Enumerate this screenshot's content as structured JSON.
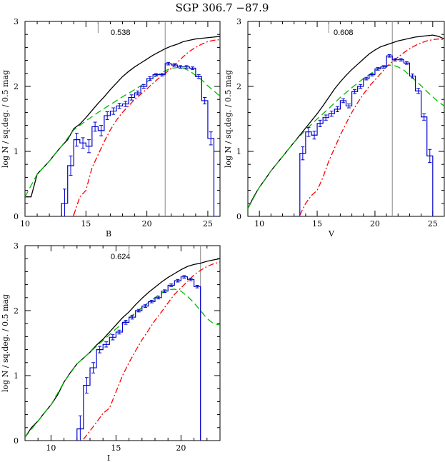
{
  "figure_title": "SGP 306.7  −87.9",
  "colors": {
    "total": "#000000",
    "green": "#00bb00",
    "red": "#ff0000",
    "observed": "#0000cc",
    "marker": "#888888"
  },
  "chart_data": [
    {
      "type": "line",
      "xlabel": "B",
      "ylabel": "log N / sq.deg. / 0.5 mag",
      "annotation": "0.538",
      "xlim": [
        10,
        26
      ],
      "ylim": [
        0,
        3
      ],
      "xticks": [
        10,
        15,
        20,
        25
      ],
      "yticks": [
        0,
        1,
        2,
        3
      ],
      "vline": 21.5,
      "short_tick": 16,
      "series": [
        {
          "style": "total",
          "x": [
            10,
            10.5,
            11,
            11.5,
            12,
            12.5,
            13,
            13.5,
            14,
            14.5,
            15,
            15.5,
            16,
            16.5,
            17,
            17.5,
            18,
            18.5,
            19,
            19.5,
            20,
            20.5,
            21,
            21.5,
            22,
            22.5,
            23,
            23.5,
            24,
            24.5,
            25,
            25.5,
            26
          ],
          "y": [
            0.3,
            0.3,
            0.65,
            0.75,
            0.85,
            0.97,
            1.08,
            1.18,
            1.35,
            1.42,
            1.52,
            1.63,
            1.74,
            1.84,
            1.95,
            2.05,
            2.15,
            2.23,
            2.3,
            2.36,
            2.42,
            2.48,
            2.53,
            2.58,
            2.62,
            2.65,
            2.69,
            2.71,
            2.73,
            2.74,
            2.75,
            2.76,
            2.77
          ]
        },
        {
          "style": "green",
          "x": [
            10,
            11,
            12,
            13,
            14,
            15,
            16,
            17,
            18,
            19,
            20,
            21,
            21.5,
            22,
            22.5,
            23,
            23.5,
            24,
            24.5,
            25,
            25.5,
            26
          ],
          "y": [
            0.3,
            0.65,
            0.85,
            1.08,
            1.33,
            1.47,
            1.6,
            1.72,
            1.84,
            1.95,
            2.07,
            2.19,
            2.24,
            2.28,
            2.29,
            2.28,
            2.24,
            2.17,
            2.1,
            2.01,
            1.93,
            1.85
          ]
        },
        {
          "style": "red",
          "x": [
            14,
            14.5,
            15,
            15.5,
            16,
            16.5,
            17,
            17.5,
            18,
            18.5,
            19,
            19.5,
            20,
            20.5,
            21,
            21.5,
            22,
            22.5,
            23,
            23.5,
            24,
            24.5,
            25,
            25.5,
            26
          ],
          "y": [
            0.02,
            0.3,
            0.4,
            0.75,
            0.95,
            1.15,
            1.33,
            1.48,
            1.6,
            1.7,
            1.8,
            1.88,
            1.96,
            2.05,
            2.13,
            2.2,
            2.28,
            2.37,
            2.46,
            2.54,
            2.6,
            2.65,
            2.69,
            2.71,
            2.72
          ]
        },
        {
          "style": "observed",
          "x": [
            13.25,
            13.75,
            14.25,
            14.75,
            15.25,
            15.75,
            16.25,
            16.75,
            17.25,
            17.75,
            18.25,
            18.75,
            19.25,
            19.75,
            20.25,
            20.75,
            21.25,
            21.75,
            22.25,
            22.75,
            23.25,
            23.75,
            24.25,
            24.75,
            25.25,
            25.75
          ],
          "y": [
            0.2,
            0.78,
            1.18,
            1.13,
            1.08,
            1.38,
            1.32,
            1.55,
            1.62,
            1.7,
            1.73,
            1.83,
            1.9,
            2.0,
            2.12,
            2.18,
            2.18,
            2.35,
            2.33,
            2.3,
            2.3,
            2.28,
            2.15,
            1.78,
            1.2,
            0.0
          ],
          "err": [
            0.22,
            0.15,
            0.1,
            0.08,
            0.1,
            0.07,
            0.08,
            0.06,
            0.05,
            0.04,
            0.04,
            0.04,
            0.03,
            0.03,
            0.03,
            0.02,
            0.02,
            0.02,
            0.02,
            0.02,
            0.02,
            0.02,
            0.03,
            0.05,
            0.1,
            0
          ]
        }
      ]
    },
    {
      "type": "line",
      "xlabel": "V",
      "ylabel": "log N / sq.deg. / 0.5 mag",
      "annotation": "0.608",
      "xlim": [
        9,
        26
      ],
      "ylim": [
        0,
        3
      ],
      "xticks": [
        10,
        15,
        20,
        25
      ],
      "yticks": [
        0,
        1,
        2,
        3
      ],
      "vline": 21.5,
      "short_tick": 16,
      "series": [
        {
          "style": "total",
          "x": [
            9,
            9.5,
            10,
            10.5,
            11,
            11.5,
            12,
            12.5,
            13,
            13.5,
            14,
            14.5,
            15,
            15.5,
            16,
            16.5,
            17,
            17.5,
            18,
            18.5,
            19,
            19.5,
            20,
            20.5,
            21,
            21.5,
            22,
            22.5,
            23,
            23.5,
            24,
            24.5,
            25,
            25.5,
            26
          ],
          "y": [
            0.12,
            0.3,
            0.45,
            0.57,
            0.7,
            0.81,
            0.92,
            1.03,
            1.14,
            1.25,
            1.36,
            1.47,
            1.58,
            1.7,
            1.83,
            1.96,
            2.07,
            2.17,
            2.26,
            2.34,
            2.42,
            2.5,
            2.56,
            2.61,
            2.64,
            2.67,
            2.7,
            2.72,
            2.74,
            2.76,
            2.77,
            2.78,
            2.79,
            2.77,
            2.73
          ]
        },
        {
          "style": "green",
          "x": [
            9,
            10,
            11,
            12,
            13,
            14,
            15,
            16,
            17,
            18,
            19,
            20,
            20.5,
            21,
            21.5,
            22,
            22.5,
            23,
            23.5,
            24,
            24.5,
            25,
            25.5,
            26
          ],
          "y": [
            0.12,
            0.45,
            0.7,
            0.92,
            1.14,
            1.33,
            1.5,
            1.66,
            1.83,
            1.98,
            2.12,
            2.24,
            2.29,
            2.32,
            2.33,
            2.3,
            2.25,
            2.17,
            2.09,
            2.01,
            1.92,
            1.84,
            1.76,
            1.7
          ]
        },
        {
          "style": "red",
          "x": [
            13.5,
            14,
            14.5,
            15,
            15.5,
            16,
            16.5,
            17,
            17.5,
            18,
            18.5,
            19,
            19.5,
            20,
            20.5,
            21,
            21.5,
            22,
            22.5,
            23,
            23.5,
            24,
            24.5,
            25,
            25.5,
            26
          ],
          "y": [
            0.02,
            0.2,
            0.32,
            0.4,
            0.6,
            0.85,
            1.05,
            1.25,
            1.43,
            1.6,
            1.75,
            1.88,
            2.0,
            2.1,
            2.2,
            2.3,
            2.38,
            2.45,
            2.52,
            2.58,
            2.63,
            2.67,
            2.7,
            2.72,
            2.73,
            2.72
          ]
        },
        {
          "style": "observed",
          "x": [
            13.25,
            13.75,
            14.25,
            14.75,
            15.25,
            15.75,
            16.25,
            16.75,
            17.25,
            17.75,
            18.25,
            18.75,
            19.25,
            19.75,
            20.25,
            20.75,
            21.25,
            21.75,
            22.25,
            22.75,
            23.25,
            23.75,
            24.25,
            24.75
          ],
          "y": [
            0.0,
            0.97,
            1.3,
            1.25,
            1.43,
            1.52,
            1.58,
            1.65,
            1.78,
            1.7,
            1.92,
            2.0,
            2.12,
            2.18,
            2.27,
            2.3,
            2.47,
            2.41,
            2.41,
            2.36,
            2.16,
            1.93,
            1.53,
            0.93
          ],
          "err": [
            0,
            0.1,
            0.07,
            0.06,
            0.05,
            0.04,
            0.04,
            0.04,
            0.03,
            0.03,
            0.03,
            0.03,
            0.02,
            0.02,
            0.02,
            0.02,
            0.02,
            0.02,
            0.02,
            0.02,
            0.03,
            0.04,
            0.05,
            0.1
          ]
        }
      ]
    },
    {
      "type": "line",
      "xlabel": "I",
      "ylabel": "log N / sq.deg. / 0.5 mag",
      "annotation": "0.624",
      "xlim": [
        8,
        23
      ],
      "ylim": [
        0,
        3
      ],
      "xticks": [
        10,
        15,
        20
      ],
      "yticks": [
        0,
        1,
        2,
        3
      ],
      "vline": 21.5,
      "short_tick": 16,
      "series": [
        {
          "style": "total",
          "x": [
            8,
            8.5,
            9,
            9.5,
            10,
            10.5,
            11,
            11.5,
            12,
            12.5,
            13,
            13.5,
            14,
            14.5,
            15,
            15.5,
            16,
            16.5,
            17,
            17.5,
            18,
            18.5,
            19,
            19.5,
            20,
            20.5,
            21,
            21.5,
            22,
            22.5,
            23
          ],
          "y": [
            0.05,
            0.2,
            0.3,
            0.43,
            0.55,
            0.7,
            0.9,
            1.05,
            1.18,
            1.27,
            1.36,
            1.47,
            1.56,
            1.67,
            1.78,
            1.89,
            1.98,
            2.09,
            2.19,
            2.28,
            2.36,
            2.44,
            2.51,
            2.57,
            2.63,
            2.68,
            2.71,
            2.73,
            2.76,
            2.78,
            2.8
          ]
        },
        {
          "style": "green",
          "x": [
            8,
            9,
            10,
            11,
            12,
            13,
            14,
            15,
            16,
            17,
            18,
            18.5,
            19,
            19.5,
            20,
            20.5,
            21,
            21.5,
            22,
            22.5,
            23
          ],
          "y": [
            0.05,
            0.3,
            0.55,
            0.9,
            1.18,
            1.36,
            1.54,
            1.72,
            1.88,
            2.05,
            2.2,
            2.27,
            2.32,
            2.33,
            2.3,
            2.22,
            2.12,
            2.0,
            1.88,
            1.8,
            1.78
          ]
        },
        {
          "style": "red",
          "x": [
            12.5,
            13,
            13.5,
            14,
            14.5,
            15,
            15.5,
            16,
            16.5,
            17,
            17.5,
            18,
            18.5,
            19,
            19.5,
            20,
            20.5,
            21,
            21.5,
            22,
            22.5,
            23
          ],
          "y": [
            0.02,
            0.15,
            0.28,
            0.42,
            0.5,
            0.75,
            1.0,
            1.2,
            1.38,
            1.55,
            1.7,
            1.85,
            1.98,
            2.12,
            2.25,
            2.35,
            2.45,
            2.55,
            2.62,
            2.68,
            2.72,
            2.75
          ]
        },
        {
          "style": "observed",
          "x": [
            12.25,
            12.75,
            13.25,
            13.75,
            14.25,
            14.75,
            15.25,
            15.75,
            16.25,
            16.75,
            17.25,
            17.75,
            18.25,
            18.75,
            19.25,
            19.75,
            20.25,
            20.75,
            21.25
          ],
          "y": [
            0.18,
            0.85,
            1.12,
            1.4,
            1.48,
            1.59,
            1.67,
            1.82,
            1.9,
            2.0,
            2.07,
            2.14,
            2.2,
            2.3,
            2.39,
            2.46,
            2.52,
            2.48,
            2.37
          ],
          "err": [
            0.2,
            0.12,
            0.08,
            0.05,
            0.04,
            0.04,
            0.03,
            0.03,
            0.03,
            0.02,
            0.02,
            0.02,
            0.02,
            0.02,
            0.02,
            0.02,
            0.02,
            0.02,
            0.02
          ]
        }
      ]
    }
  ]
}
